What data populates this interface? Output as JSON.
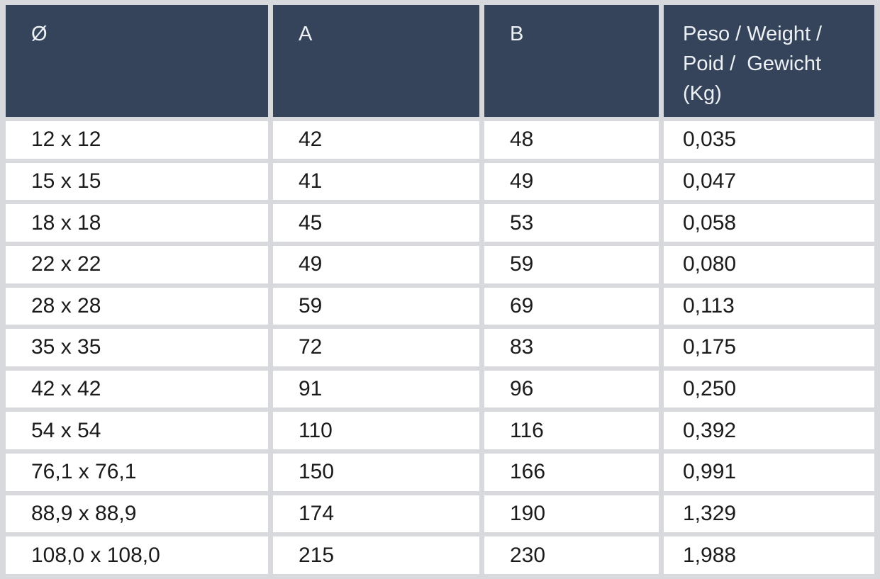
{
  "chart_data": {
    "type": "table",
    "columns": [
      "Ø",
      "A",
      "B",
      "Peso / Weight /\nPoid /  Gewicht\n(Kg)"
    ],
    "rows": [
      [
        "12 x 12",
        "42",
        "48",
        "0,035"
      ],
      [
        "15 x 15",
        "41",
        "49",
        "0,047"
      ],
      [
        "18 x 18",
        "45",
        "53",
        "0,058"
      ],
      [
        "22 x 22",
        "49",
        "59",
        "0,080"
      ],
      [
        "28 x 28",
        "59",
        "69",
        "0,113"
      ],
      [
        "35 x 35",
        "72",
        "83",
        "0,175"
      ],
      [
        "42 x 42",
        "91",
        "96",
        "0,250"
      ],
      [
        "54 x 54",
        "110",
        "116",
        "0,392"
      ],
      [
        "76,1 x 76,1",
        "150",
        "166",
        "0,991"
      ],
      [
        "88,9 x 88,9",
        "174",
        "190",
        "1,329"
      ],
      [
        "108,0 x 108,0",
        "215",
        "230",
        "1,988"
      ]
    ],
    "layout": {
      "grid": "on",
      "header_position": "top"
    }
  },
  "colors": {
    "header_bg": "#35445A",
    "header_text": "#EDF1F5",
    "grid": "#D8D9DD",
    "cell_bg": "#FFFFFF",
    "cell_text": "#1B1B1B"
  }
}
